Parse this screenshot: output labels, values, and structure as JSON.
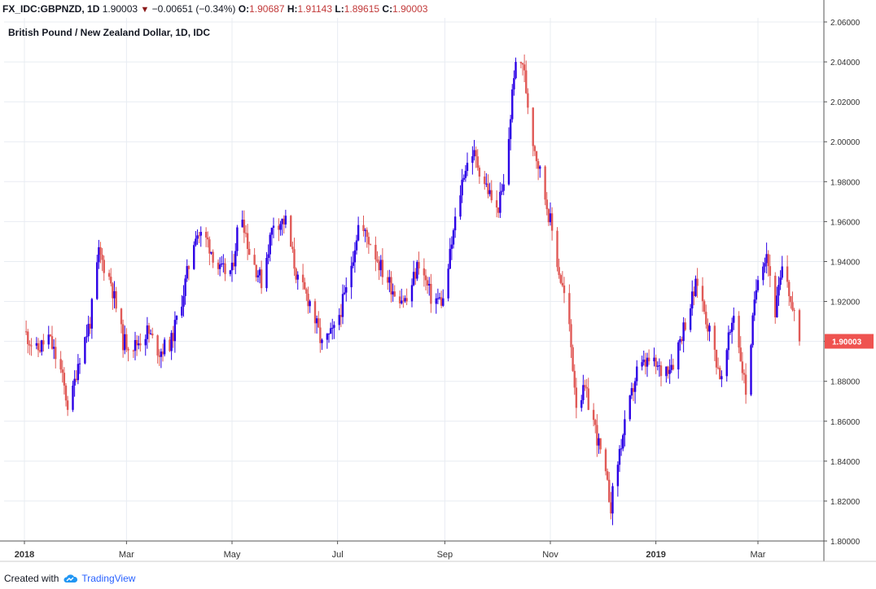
{
  "header": {
    "symbol": "FX_IDC:GBPNZD,",
    "interval": "1D",
    "last": "1.90003",
    "change": "−0.00651 (−0.34%)",
    "o_label": "O:",
    "o_value": "1.90687",
    "h_label": "H:",
    "h_value": "1.91143",
    "l_label": "L:",
    "l_value": "1.89615",
    "c_label": "C:",
    "c_value": "1.90003"
  },
  "chart_title": "British Pound / New Zealand Dollar, 1D, IDC",
  "footer": {
    "created_with": "Created with",
    "brand": "TradingView"
  },
  "colors": {
    "up": "#2b00e6",
    "down": "#e05a57",
    "grid": "#e8ecf2",
    "axis": "#555555",
    "price_tag": "#ef5350"
  },
  "chart_data": {
    "type": "candlestick",
    "title": "British Pound / New Zealand Dollar, 1D, IDC",
    "ylim": [
      1.8,
      2.06
    ],
    "y_ticks": [
      "1.80000",
      "1.82000",
      "1.84000",
      "1.86000",
      "1.88000",
      "1.90000",
      "1.92000",
      "1.94000",
      "1.96000",
      "1.98000",
      "2.00000",
      "2.02000",
      "2.04000",
      "2.06000"
    ],
    "x_ticks": [
      {
        "label": "2018",
        "date": "2018-01-01",
        "bold": true
      },
      {
        "label": "Mar",
        "date": "2018-03-01",
        "bold": false
      },
      {
        "label": "May",
        "date": "2018-05-01",
        "bold": false
      },
      {
        "label": "Jul",
        "date": "2018-07-01",
        "bold": false
      },
      {
        "label": "Sep",
        "date": "2018-09-01",
        "bold": false
      },
      {
        "label": "Nov",
        "date": "2018-11-01",
        "bold": false
      },
      {
        "label": "2019",
        "date": "2019-01-01",
        "bold": true
      },
      {
        "label": "Mar",
        "date": "2019-03-01",
        "bold": false
      }
    ],
    "last_price": 1.90003,
    "last_price_label": "1.90003",
    "closes": [
      {
        "date": "2018-01-01",
        "close": 1.905
      },
      {
        "date": "2018-01-08",
        "close": 1.895
      },
      {
        "date": "2018-01-15",
        "close": 1.902
      },
      {
        "date": "2018-01-22",
        "close": 1.885
      },
      {
        "date": "2018-01-27",
        "close": 1.864
      },
      {
        "date": "2018-02-01",
        "close": 1.89
      },
      {
        "date": "2018-02-08",
        "close": 1.91
      },
      {
        "date": "2018-02-13",
        "close": 1.944
      },
      {
        "date": "2018-02-20",
        "close": 1.93
      },
      {
        "date": "2018-02-27",
        "close": 1.9
      },
      {
        "date": "2018-03-06",
        "close": 1.898
      },
      {
        "date": "2018-03-13",
        "close": 1.905
      },
      {
        "date": "2018-03-20",
        "close": 1.895
      },
      {
        "date": "2018-03-27",
        "close": 1.9
      },
      {
        "date": "2018-04-03",
        "close": 1.925
      },
      {
        "date": "2018-04-10",
        "close": 1.955
      },
      {
        "date": "2018-04-17",
        "close": 1.95
      },
      {
        "date": "2018-04-24",
        "close": 1.935
      },
      {
        "date": "2018-05-01",
        "close": 1.935
      },
      {
        "date": "2018-05-06",
        "close": 1.968
      },
      {
        "date": "2018-05-11",
        "close": 1.945
      },
      {
        "date": "2018-05-18",
        "close": 1.93
      },
      {
        "date": "2018-05-25",
        "close": 1.96
      },
      {
        "date": "2018-06-01",
        "close": 1.96
      },
      {
        "date": "2018-06-08",
        "close": 1.93
      },
      {
        "date": "2018-06-15",
        "close": 1.92
      },
      {
        "date": "2018-06-22",
        "close": 1.898
      },
      {
        "date": "2018-06-29",
        "close": 1.905
      },
      {
        "date": "2018-07-06",
        "close": 1.925
      },
      {
        "date": "2018-07-13",
        "close": 1.958
      },
      {
        "date": "2018-07-20",
        "close": 1.95
      },
      {
        "date": "2018-07-27",
        "close": 1.935
      },
      {
        "date": "2018-08-03",
        "close": 1.925
      },
      {
        "date": "2018-08-10",
        "close": 1.92
      },
      {
        "date": "2018-08-17",
        "close": 1.94
      },
      {
        "date": "2018-08-24",
        "close": 1.922
      },
      {
        "date": "2018-08-31",
        "close": 1.92
      },
      {
        "date": "2018-09-07",
        "close": 1.96
      },
      {
        "date": "2018-09-12",
        "close": 1.985
      },
      {
        "date": "2018-09-17",
        "close": 1.995
      },
      {
        "date": "2018-09-24",
        "close": 1.98
      },
      {
        "date": "2018-10-01",
        "close": 1.965
      },
      {
        "date": "2018-10-06",
        "close": 1.98
      },
      {
        "date": "2018-10-11",
        "close": 2.035
      },
      {
        "date": "2018-10-16",
        "close": 2.04
      },
      {
        "date": "2018-10-21",
        "close": 2.005
      },
      {
        "date": "2018-10-26",
        "close": 1.985
      },
      {
        "date": "2018-11-01",
        "close": 1.96
      },
      {
        "date": "2018-11-06",
        "close": 1.935
      },
      {
        "date": "2018-11-11",
        "close": 1.915
      },
      {
        "date": "2018-11-16",
        "close": 1.87
      },
      {
        "date": "2018-11-21",
        "close": 1.875
      },
      {
        "date": "2018-11-26",
        "close": 1.86
      },
      {
        "date": "2018-12-01",
        "close": 1.84
      },
      {
        "date": "2018-12-06",
        "close": 1.818
      },
      {
        "date": "2018-12-11",
        "close": 1.845
      },
      {
        "date": "2018-12-16",
        "close": 1.865
      },
      {
        "date": "2018-12-21",
        "close": 1.885
      },
      {
        "date": "2018-12-28",
        "close": 1.89
      },
      {
        "date": "2019-01-04",
        "close": 1.885
      },
      {
        "date": "2019-01-11",
        "close": 1.89
      },
      {
        "date": "2019-01-18",
        "close": 1.91
      },
      {
        "date": "2019-01-25",
        "close": 1.93
      },
      {
        "date": "2019-02-01",
        "close": 1.905
      },
      {
        "date": "2019-02-08",
        "close": 1.88
      },
      {
        "date": "2019-02-15",
        "close": 1.915
      },
      {
        "date": "2019-02-22",
        "close": 1.875
      },
      {
        "date": "2019-03-01",
        "close": 1.935
      },
      {
        "date": "2019-03-06",
        "close": 1.945
      },
      {
        "date": "2019-03-11",
        "close": 1.915
      },
      {
        "date": "2019-03-16",
        "close": 1.94
      },
      {
        "date": "2019-03-21",
        "close": 1.915
      },
      {
        "date": "2019-03-25",
        "close": 1.90003
      }
    ]
  }
}
